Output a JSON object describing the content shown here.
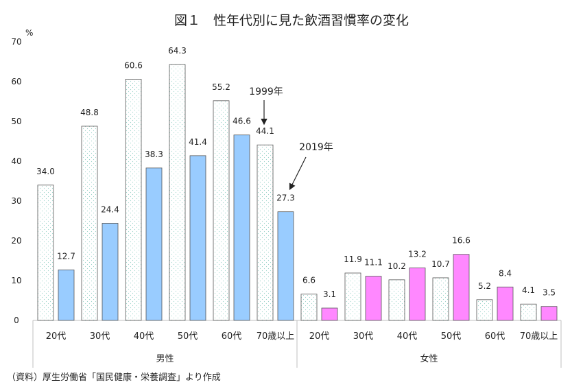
{
  "chart_data": {
    "type": "bar",
    "title": "図１　性年代別に見た飲酒習慣率の変化",
    "ylabel": "%",
    "ylim": [
      0,
      70
    ],
    "yticks": [
      "0",
      "10",
      "20",
      "30",
      "40",
      "50",
      "60",
      "70"
    ],
    "grid": false,
    "groups": [
      {
        "name": "男性",
        "categories": [
          "20代",
          "30代",
          "40代",
          "50代",
          "60代",
          "70歳以上"
        ],
        "values_1999": [
          34.0,
          48.8,
          60.6,
          64.3,
          55.2,
          44.1
        ],
        "values_2019": [
          12.7,
          24.4,
          38.3,
          41.4,
          46.6,
          27.3
        ],
        "labels_1999": [
          "34.0",
          "48.8",
          "60.6",
          "64.3",
          "55.2",
          "44.1"
        ],
        "labels_2019": [
          "12.7",
          "24.4",
          "38.3",
          "41.4",
          "46.6",
          "27.3"
        ]
      },
      {
        "name": "女性",
        "categories": [
          "20代",
          "30代",
          "40代",
          "50代",
          "60代",
          "70歳以上"
        ],
        "values_1999": [
          6.6,
          11.9,
          10.2,
          10.7,
          5.2,
          4.1
        ],
        "values_2019": [
          3.1,
          11.1,
          13.2,
          16.6,
          8.4,
          3.5
        ],
        "labels_1999": [
          "6.6",
          "11.9",
          "10.2",
          "10.7",
          "5.2",
          "4.1"
        ],
        "labels_2019": [
          "3.1",
          "11.1",
          "13.2",
          "16.6",
          "8.4",
          "3.5"
        ]
      }
    ],
    "annotations": [
      "1999年",
      "2019年"
    ],
    "source": "（資料）厚生労働省「国民健康・栄養調査」より作成"
  },
  "colors": {
    "bar_1999_fill": "#ffffff",
    "bar_1999_dots": "#9bd3c9",
    "bar_outline": "#555555",
    "bar_2019_male": "#99ccff",
    "bar_2019_female": "#ff88ff",
    "axis": "#bfbfbf"
  }
}
